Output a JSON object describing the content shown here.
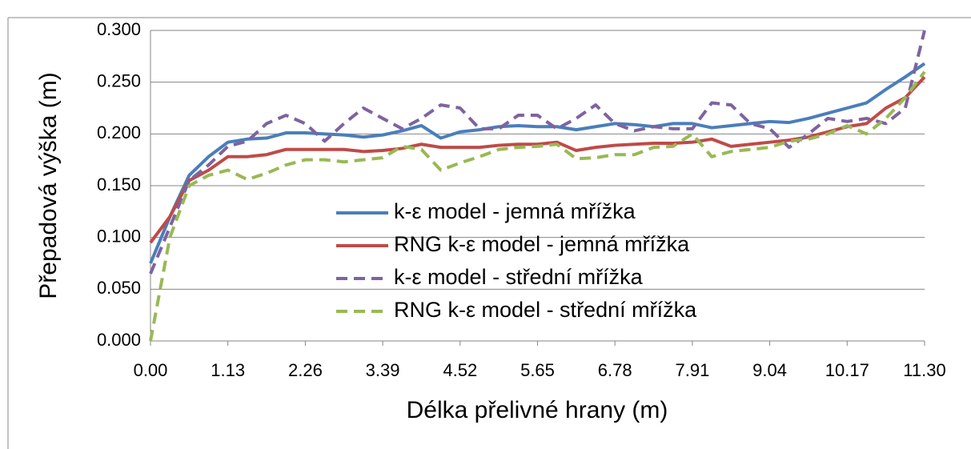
{
  "chart_data": {
    "type": "line",
    "xlabel": "Délka přelivné hrany (m)",
    "ylabel": "Přepadová výška (m)",
    "x": [
      0,
      0.283,
      0.565,
      0.848,
      1.13,
      1.413,
      1.695,
      1.978,
      2.26,
      2.543,
      2.825,
      3.108,
      3.39,
      3.673,
      3.955,
      4.238,
      4.52,
      4.803,
      5.085,
      5.368,
      5.65,
      5.933,
      6.215,
      6.498,
      6.78,
      7.063,
      7.345,
      7.628,
      7.91,
      8.193,
      8.475,
      8.758,
      9.04,
      9.323,
      9.605,
      9.888,
      10.17,
      10.453,
      10.735,
      11.018,
      11.3
    ],
    "series": [
      {
        "name": "k-ε model - jemná mřížka",
        "color": "#4a7ebb",
        "dashed": false,
        "values": [
          0.075,
          0.12,
          0.16,
          0.178,
          0.192,
          0.195,
          0.196,
          0.201,
          0.201,
          0.2,
          0.199,
          0.197,
          0.199,
          0.203,
          0.208,
          0.196,
          0.202,
          0.204,
          0.207,
          0.208,
          0.207,
          0.207,
          0.204,
          0.207,
          0.21,
          0.209,
          0.207,
          0.21,
          0.21,
          0.206,
          0.208,
          0.21,
          0.212,
          0.211,
          0.215,
          0.22,
          0.225,
          0.23,
          0.243,
          0.255,
          0.268
        ]
      },
      {
        "name": "RNG k-ε model - jemná mřížka",
        "color": "#be4b48",
        "dashed": false,
        "values": [
          0.095,
          0.12,
          0.155,
          0.165,
          0.178,
          0.178,
          0.18,
          0.185,
          0.185,
          0.185,
          0.185,
          0.183,
          0.184,
          0.186,
          0.19,
          0.187,
          0.187,
          0.187,
          0.189,
          0.19,
          0.19,
          0.192,
          0.184,
          0.187,
          0.189,
          0.19,
          0.191,
          0.191,
          0.192,
          0.195,
          0.188,
          0.19,
          0.192,
          0.194,
          0.197,
          0.202,
          0.207,
          0.21,
          0.225,
          0.235,
          0.255
        ]
      },
      {
        "name": "k-ε model - střední mřížka",
        "color": "#7e63a0",
        "dashed": true,
        "values": [
          0.065,
          0.11,
          0.155,
          0.17,
          0.188,
          0.193,
          0.21,
          0.218,
          0.21,
          0.193,
          0.21,
          0.225,
          0.215,
          0.205,
          0.215,
          0.228,
          0.225,
          0.205,
          0.205,
          0.218,
          0.218,
          0.205,
          0.215,
          0.228,
          0.21,
          0.203,
          0.207,
          0.205,
          0.205,
          0.23,
          0.228,
          0.21,
          0.205,
          0.187,
          0.2,
          0.215,
          0.212,
          0.215,
          0.21,
          0.225,
          0.3
        ]
      },
      {
        "name": "RNG k-ε model - střední mřížka",
        "color": "#98b954",
        "dashed": true,
        "values": [
          0,
          0.1,
          0.15,
          0.16,
          0.165,
          0.156,
          0.162,
          0.17,
          0.175,
          0.175,
          0.173,
          0.175,
          0.177,
          0.188,
          0.185,
          0.165,
          0.172,
          0.178,
          0.185,
          0.187,
          0.188,
          0.19,
          0.176,
          0.177,
          0.18,
          0.18,
          0.187,
          0.188,
          0.2,
          0.178,
          0.183,
          0.185,
          0.187,
          0.193,
          0.195,
          0.2,
          0.208,
          0.2,
          0.215,
          0.235,
          0.26
        ]
      }
    ],
    "xlim": [
      0,
      11.3
    ],
    "xticks": [
      {
        "value": 0,
        "label": "0.00"
      },
      1.13,
      2.26,
      3.39,
      4.52,
      5.65,
      6.78,
      7.91,
      9.04,
      10.17,
      {
        "value": 11.3,
        "label": "11.30"
      }
    ],
    "ylim": [
      0,
      0.3
    ],
    "yticks": [
      {
        "value": 0,
        "label": "0.000"
      },
      {
        "value": 0.05,
        "label": "0.050"
      },
      {
        "value": 0.1,
        "label": "0.100"
      },
      {
        "value": 0.15,
        "label": "0.150"
      },
      {
        "value": 0.2,
        "label": "0.200"
      },
      {
        "value": 0.25,
        "label": "0.250"
      },
      {
        "value": 0.3,
        "label": "0.300"
      }
    ],
    "grid": true,
    "legend": "center"
  }
}
